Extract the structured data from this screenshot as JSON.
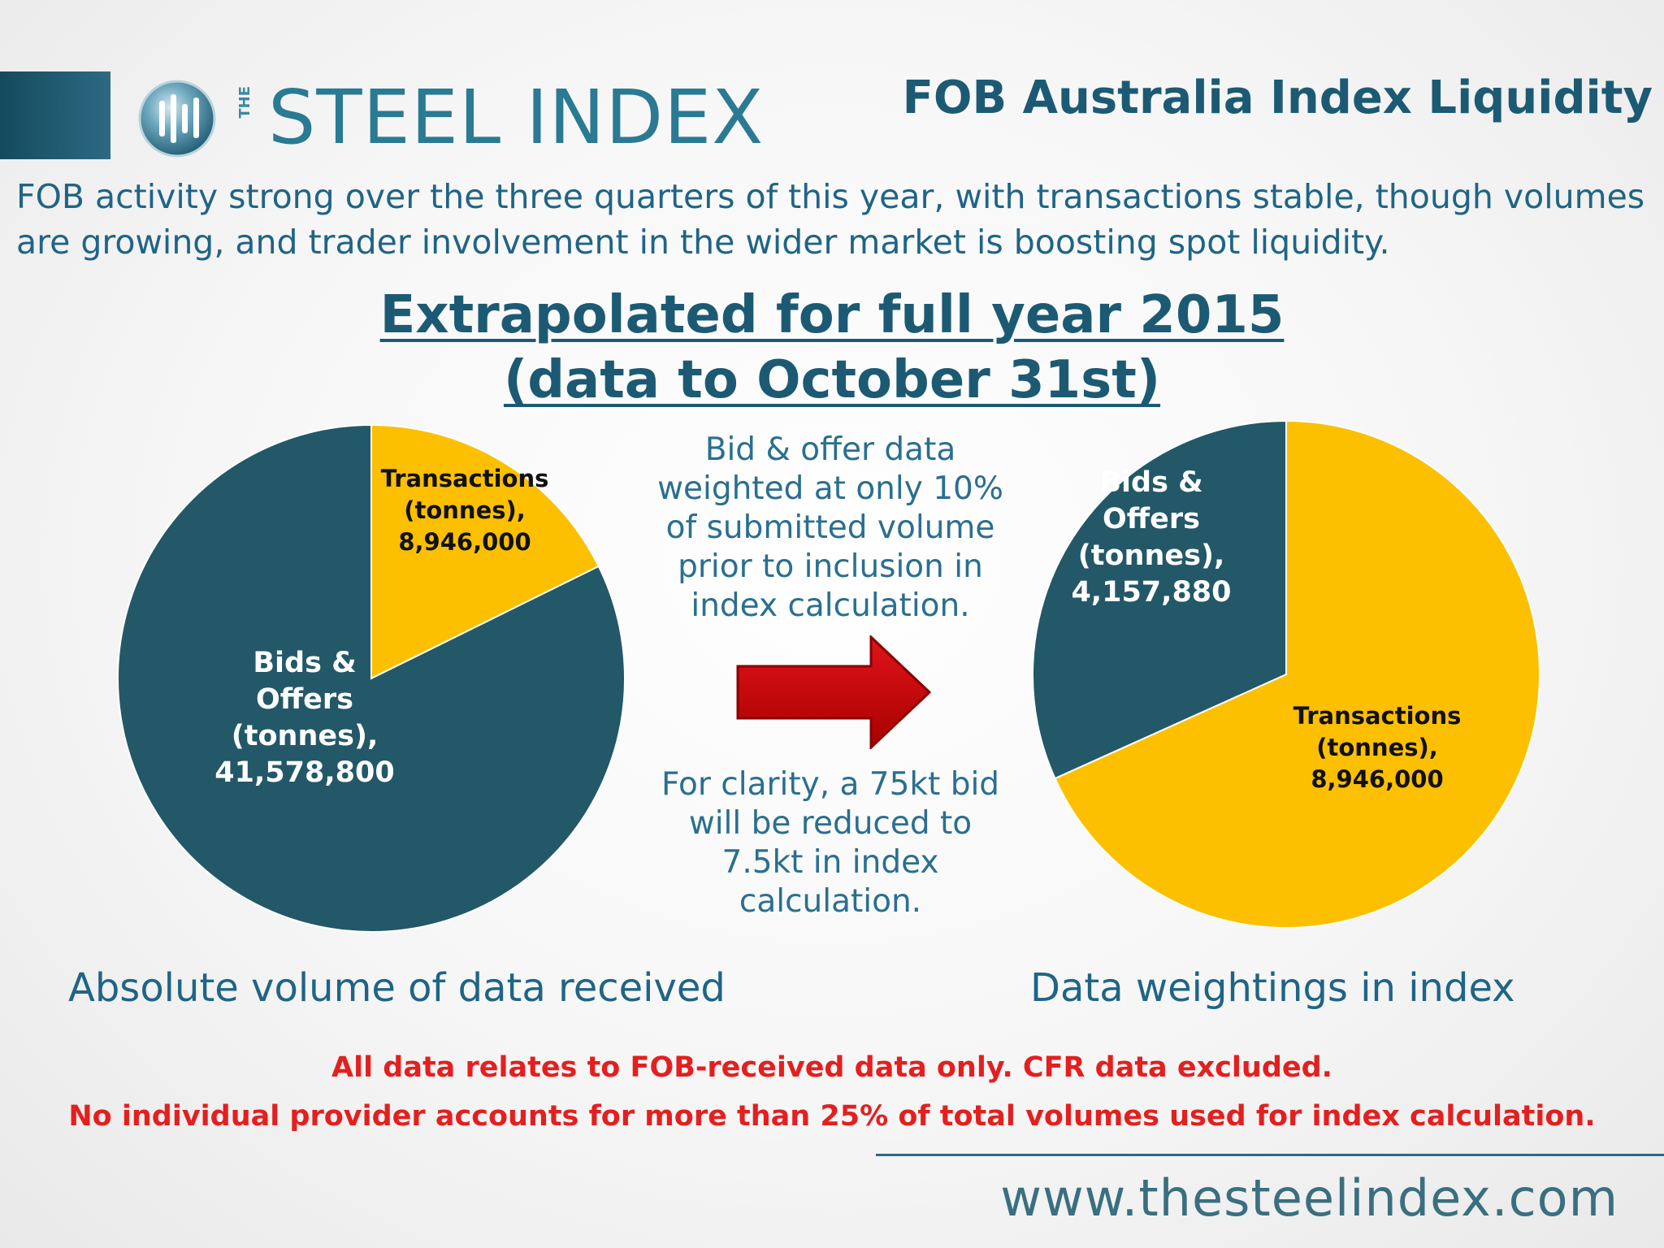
{
  "header": {
    "logo_the": "THE",
    "logo_word": "STEEL INDEX",
    "title": "FOB Australia Index Liquidity"
  },
  "subtitle": "FOB activity strong over the three quarters of this year, with transactions stable, though volumes are growing, and trader involvement in the wider market is boosting spot liquidity.",
  "section": {
    "heading_line1": "Extrapolated for full year 2015",
    "heading_line2": "(data to October 31st)"
  },
  "chart_data": [
    {
      "type": "pie",
      "caption": "Absolute volume of data received",
      "slices": [
        {
          "label_lines": [
            "Transactions",
            "(tonnes),",
            "8,946,000"
          ],
          "name": "Transactions (tonnes)",
          "value": 8946000,
          "color": "#fcc000"
        },
        {
          "label_lines": [
            "Bids &",
            "Offers",
            "(tonnes),",
            "41,578,800"
          ],
          "name": "Bids & Offers (tonnes)",
          "value": 41578800,
          "color": "#235868"
        }
      ]
    },
    {
      "type": "pie",
      "caption": "Data weightings in index",
      "slices": [
        {
          "label_lines": [
            "Transactions",
            "(tonnes),",
            "8,946,000"
          ],
          "name": "Transactions (tonnes)",
          "value": 8946000,
          "color": "#fcc000"
        },
        {
          "label_lines": [
            "Bids &",
            "Offers",
            "(tonnes),",
            "4,157,880"
          ],
          "name": "Bids & Offers (tonnes)",
          "value": 4157880,
          "color": "#235868"
        }
      ]
    }
  ],
  "notes": {
    "top": "Bid & offer data weighted at only 10% of submitted volume prior to inclusion in index calculation.",
    "bottom": "For clarity, a 75kt bid will be reduced to 7.5kt in index calculation."
  },
  "arrow_icon": "right-arrow-icon",
  "arrow_color": "#c00000",
  "disclaimers": [
    "All data relates to FOB-received data only. CFR data excluded.",
    "No individual provider accounts for more than 25% of total volumes used for index calculation."
  ],
  "footer": {
    "website": "www.thesteelindex.com"
  }
}
